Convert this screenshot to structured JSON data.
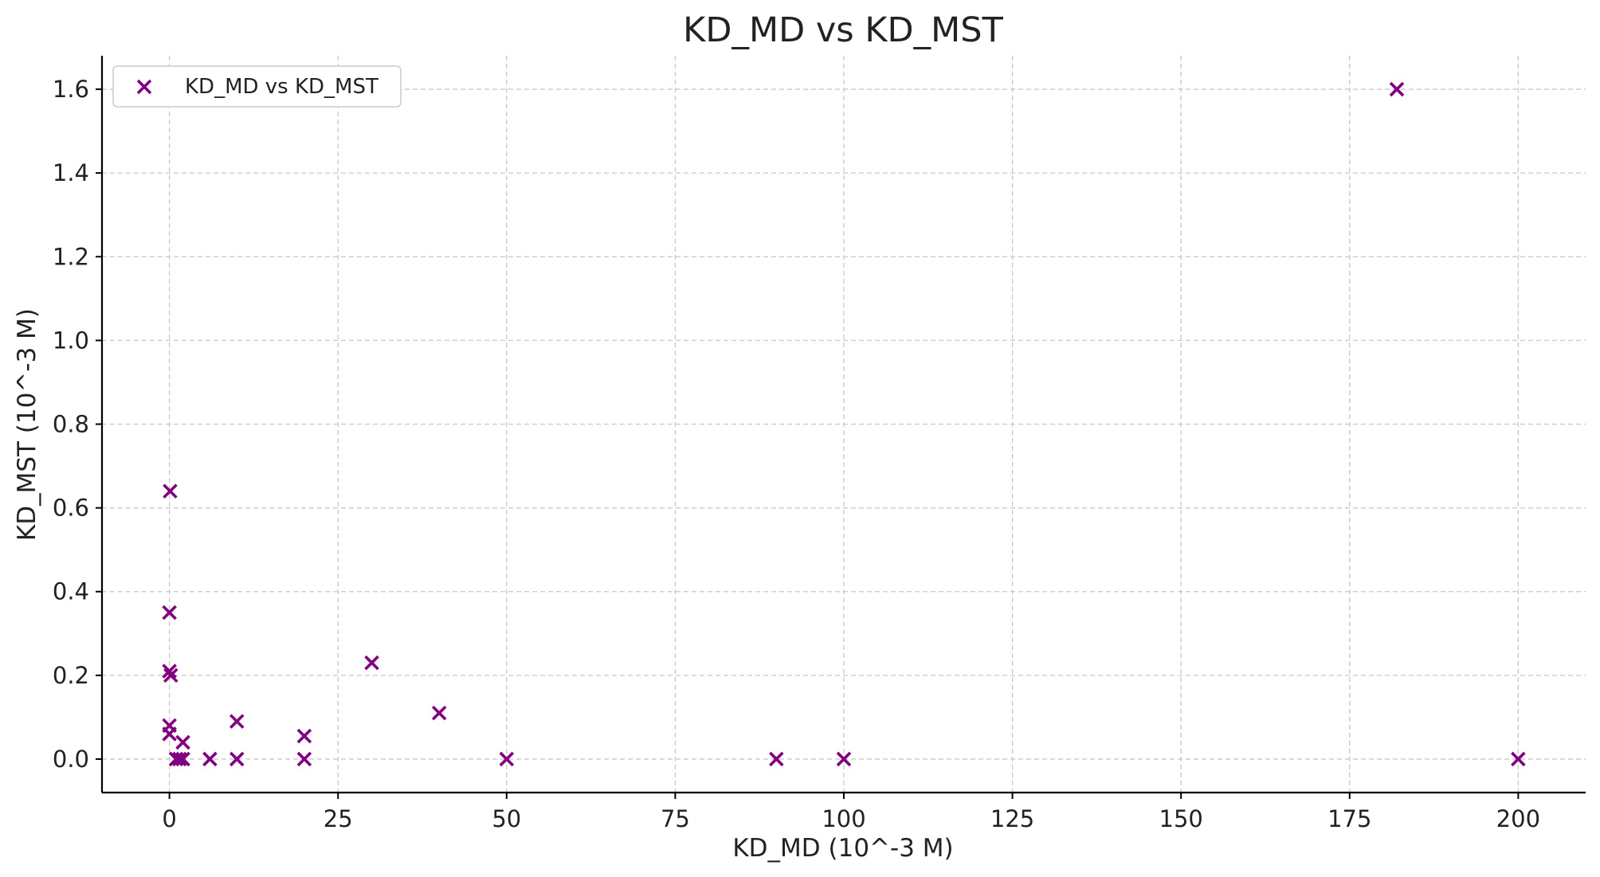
{
  "chart_data": {
    "type": "scatter",
    "title": "KD_MD vs KD_MST",
    "xlabel": "KD_MD (10^-3 M)",
    "ylabel": "KD_MST (10^-3 M)",
    "xlim": [
      -10,
      210
    ],
    "ylim": [
      -0.08,
      1.68
    ],
    "xticks": [
      0,
      25,
      50,
      75,
      100,
      125,
      150,
      175,
      200
    ],
    "xtick_labels": [
      "0",
      "25",
      "50",
      "75",
      "100",
      "125",
      "150",
      "175",
      "200"
    ],
    "yticks": [
      0.0,
      0.2,
      0.4,
      0.6,
      0.8,
      1.0,
      1.2,
      1.4,
      1.6
    ],
    "ytick_labels": [
      "0.0",
      "0.2",
      "0.4",
      "0.6",
      "0.8",
      "1.0",
      "1.2",
      "1.4",
      "1.6"
    ],
    "grid": true,
    "legend_position": "top-left",
    "color": "#800080",
    "series": [
      {
        "name": "KD_MD vs KD_MST",
        "marker": "x",
        "points": [
          {
            "x": 0.1,
            "y": 0.64
          },
          {
            "x": 0.0,
            "y": 0.35
          },
          {
            "x": 0.0,
            "y": 0.21
          },
          {
            "x": 0.2,
            "y": 0.2
          },
          {
            "x": 0.0,
            "y": 0.08
          },
          {
            "x": 0.0,
            "y": 0.06
          },
          {
            "x": 1.0,
            "y": 0.0
          },
          {
            "x": 1.5,
            "y": 0.0
          },
          {
            "x": 2.0,
            "y": 0.04
          },
          {
            "x": 2.0,
            "y": 0.0
          },
          {
            "x": 6.0,
            "y": 0.0
          },
          {
            "x": 10.0,
            "y": 0.09
          },
          {
            "x": 10.0,
            "y": 0.0
          },
          {
            "x": 20.0,
            "y": 0.055
          },
          {
            "x": 20.0,
            "y": 0.0
          },
          {
            "x": 30.0,
            "y": 0.23
          },
          {
            "x": 40.0,
            "y": 0.11
          },
          {
            "x": 50.0,
            "y": 0.0
          },
          {
            "x": 90.0,
            "y": 0.0
          },
          {
            "x": 100.0,
            "y": 0.0
          },
          {
            "x": 182.0,
            "y": 1.6
          },
          {
            "x": 200.0,
            "y": 0.0
          }
        ]
      }
    ]
  }
}
